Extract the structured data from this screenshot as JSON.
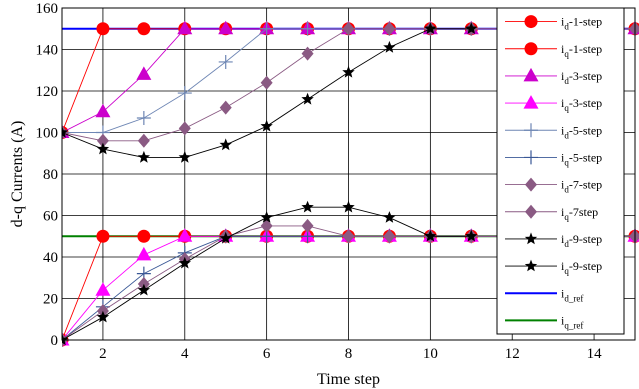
{
  "chart_data": {
    "type": "line",
    "title": "",
    "xlabel": "Time step",
    "ylabel": "d-q Currents (A)",
    "xlim": [
      1,
      15
    ],
    "ylim": [
      0,
      160
    ],
    "xticks": [
      2,
      4,
      6,
      8,
      10,
      12,
      14
    ],
    "yticks": [
      0,
      20,
      40,
      60,
      80,
      100,
      120,
      140,
      160
    ],
    "grid": true,
    "legend_position": "right",
    "series": [
      {
        "name": "d-1-step",
        "sub": "d",
        "suffix": "-1-step",
        "color": "#ff0000",
        "marker": "circle",
        "x": [
          1,
          2,
          3,
          4,
          5,
          6,
          7,
          8,
          9,
          10,
          11,
          15
        ],
        "y": [
          100,
          150,
          150,
          150,
          150,
          150,
          150,
          150,
          150,
          150,
          150,
          150
        ]
      },
      {
        "name": "q-1-step",
        "sub": "q",
        "suffix": "-1-step",
        "color": "#ff0000",
        "marker": "circle",
        "x": [
          1,
          2,
          3,
          4,
          5,
          6,
          7,
          8,
          9,
          10,
          11,
          15
        ],
        "y": [
          0,
          50,
          50,
          50,
          50,
          50,
          50,
          50,
          50,
          50,
          50,
          50
        ]
      },
      {
        "name": "d-3-step",
        "sub": "d",
        "suffix": "-3-step",
        "color": "#cc00cc",
        "marker": "triangle",
        "x": [
          1,
          2,
          3,
          4,
          5,
          6,
          7,
          8,
          9,
          10,
          11,
          15
        ],
        "y": [
          100,
          110,
          128,
          150,
          150,
          150,
          150,
          150,
          150,
          150,
          150,
          150
        ]
      },
      {
        "name": "q-3-step",
        "sub": "q",
        "suffix": "-3-step",
        "color": "#ff00ff",
        "marker": "triangle",
        "x": [
          1,
          2,
          3,
          4,
          5,
          6,
          7,
          8,
          9,
          10,
          11,
          15
        ],
        "y": [
          0,
          24,
          41,
          50,
          50,
          50,
          50,
          50,
          50,
          50,
          50,
          50
        ]
      },
      {
        "name": "d-5-step",
        "sub": "d",
        "suffix": "-5-step",
        "color": "#6e86b4",
        "marker": "plus",
        "x": [
          1,
          2,
          3,
          4,
          5,
          6,
          7,
          8,
          9,
          10,
          11,
          15
        ],
        "y": [
          100,
          100,
          107,
          119,
          134,
          150,
          150,
          150,
          150,
          150,
          150,
          150
        ]
      },
      {
        "name": "q-5-step",
        "sub": "q",
        "suffix": "-5-step",
        "color": "#3a5896",
        "marker": "plus",
        "x": [
          1,
          2,
          3,
          4,
          5,
          6,
          7,
          8,
          9,
          10,
          11,
          15
        ],
        "y": [
          0,
          16,
          32,
          42,
          50,
          50,
          50,
          50,
          50,
          50,
          50,
          50
        ]
      },
      {
        "name": "d-7-step",
        "sub": "d",
        "suffix": "-7-step",
        "color": "#8a5a83",
        "marker": "diamond",
        "x": [
          1,
          2,
          3,
          4,
          5,
          6,
          7,
          8,
          9,
          10,
          11,
          15
        ],
        "y": [
          100,
          96,
          96,
          102,
          112,
          124,
          138,
          150,
          150,
          150,
          150,
          150
        ]
      },
      {
        "name": "q-7step",
        "sub": "q",
        "suffix": "-7step",
        "color": "#8a5a83",
        "marker": "diamond",
        "x": [
          1,
          2,
          3,
          4,
          5,
          6,
          7,
          8,
          9,
          10,
          11,
          15
        ],
        "y": [
          0,
          14,
          27,
          39,
          50,
          55,
          55,
          50,
          50,
          50,
          50,
          50
        ]
      },
      {
        "name": "d-9-step",
        "sub": "d",
        "suffix": "-9-step",
        "color": "#000000",
        "marker": "star",
        "x": [
          1,
          2,
          3,
          4,
          5,
          6,
          7,
          8,
          9,
          10,
          11
        ],
        "y": [
          100,
          92,
          88,
          88,
          94,
          103,
          116,
          129,
          141,
          150,
          150
        ]
      },
      {
        "name": "q-9-step",
        "sub": "q",
        "suffix": "-9-step",
        "color": "#000000",
        "marker": "star",
        "x": [
          1,
          2,
          3,
          4,
          5,
          6,
          7,
          8,
          9,
          10,
          11
        ],
        "y": [
          0,
          11,
          24,
          37,
          49,
          59,
          64,
          64,
          59,
          50,
          50
        ]
      }
    ],
    "references": [
      {
        "name": "d_ref",
        "sub": "d_ref",
        "color": "#0000ff",
        "y": 150
      },
      {
        "name": "q_ref",
        "sub": "q_ref",
        "color": "#008000",
        "y": 50
      }
    ]
  }
}
